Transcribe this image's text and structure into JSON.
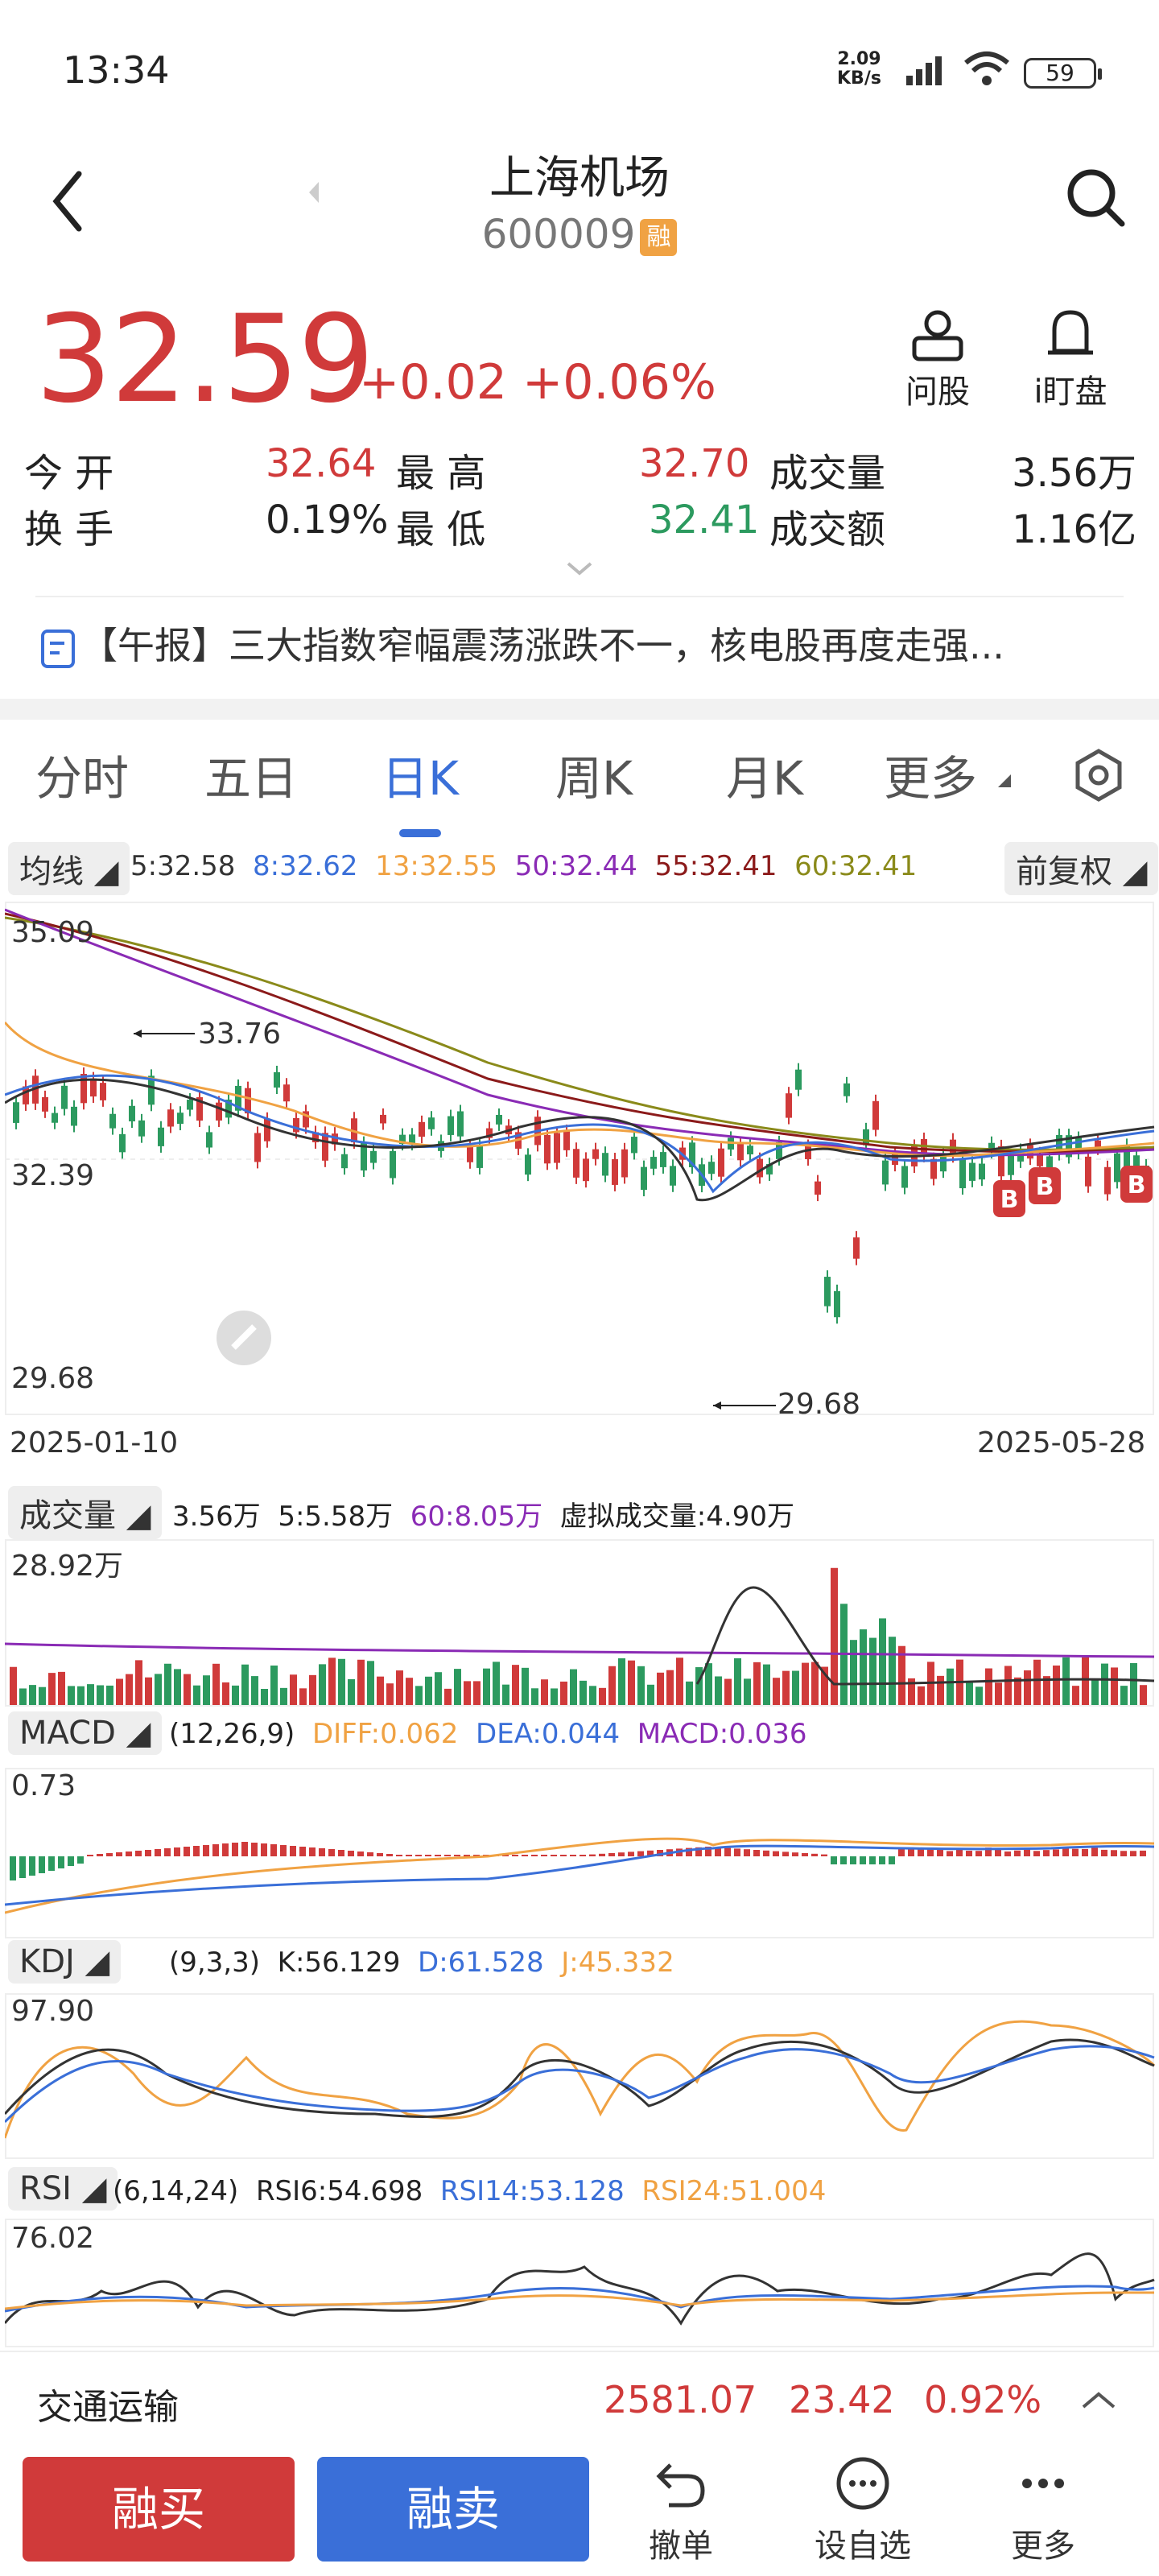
{
  "status_bar": {
    "time": "13:34",
    "net_speed": "2.09",
    "net_unit": "KB/s",
    "battery": "59"
  },
  "header": {
    "title": "上海机场",
    "code": "600009",
    "tag": "融"
  },
  "quote": {
    "price": "32.59",
    "change": "+0.02",
    "change_pct": "+0.06%"
  },
  "tools": {
    "ask": "问股",
    "watch": "i盯盘"
  },
  "stats": {
    "open_label": "今 开",
    "open": "32.64",
    "high_label": "最 高",
    "high": "32.70",
    "volume_label": "成交量",
    "volume": "3.56万",
    "turnover_label": "换 手",
    "turnover": "0.19%",
    "low_label": "最 低",
    "low": "32.41",
    "amount_label": "成交额",
    "amount": "1.16亿"
  },
  "news": {
    "text": "【午报】三大指数窄幅震荡涨跌不一，核电股再度走强..."
  },
  "tabs": [
    "分时",
    "五日",
    "日K",
    "周K",
    "月K",
    "更多"
  ],
  "active_tab": "日K",
  "kline": {
    "indicator": "均线",
    "ma_legend": [
      {
        "label": "5:32.58",
        "color": "#333333"
      },
      {
        "label": "8:32.62",
        "color": "#3a6fd8"
      },
      {
        "label": "13:32.55",
        "color": "#f0a243"
      },
      {
        "label": "50:32.44",
        "color": "#8a2bb5"
      },
      {
        "label": "55:32.41",
        "color": "#8b1a1a"
      },
      {
        "label": "60:32.41",
        "color": "#8a8a1a"
      }
    ],
    "adjust": "前复权",
    "y_top": "35.09",
    "y_mid": "32.39",
    "y_bottom": "29.68",
    "max_annot": "33.76",
    "min_annot": "29.68",
    "date_start": "2025-01-10",
    "date_end": "2025-05-28",
    "buy_mark": "B"
  },
  "volume": {
    "indicator": "成交量",
    "v1": "3.56万",
    "v2": "5:5.58万",
    "v3": "60:8.05万",
    "v4": "虚拟成交量:4.90万",
    "y_top": "28.92万"
  },
  "macd": {
    "indicator": "MACD",
    "params": "(12,26,9)",
    "diff": "DIFF:0.062",
    "dea": "DEA:0.044",
    "macd": "MACD:0.036",
    "y_top": "0.73"
  },
  "kdj": {
    "indicator": "KDJ",
    "params": "(9,3,3)",
    "k": "K:56.129",
    "d": "D:61.528",
    "j": "J:45.332",
    "y_top": "97.90"
  },
  "rsi": {
    "indicator": "RSI",
    "params": "(6,14,24)",
    "r6": "RSI6:54.698",
    "r14": "RSI14:53.128",
    "r24": "RSI24:51.004",
    "y_top": "76.02"
  },
  "sector": {
    "name": "交通运输",
    "value": "2581.07",
    "change": "23.42",
    "pct": "0.92%"
  },
  "bottom": {
    "buy": "融买",
    "sell": "融卖",
    "cancel": "撤单",
    "watchlist": "设自选",
    "more": "更多"
  },
  "colors": {
    "up": "#d03a3a",
    "down": "#2c9a5f",
    "accent": "#3a6fd8",
    "sell_btn": "#3a6fd8",
    "buy_btn": "#d03a3a"
  }
}
